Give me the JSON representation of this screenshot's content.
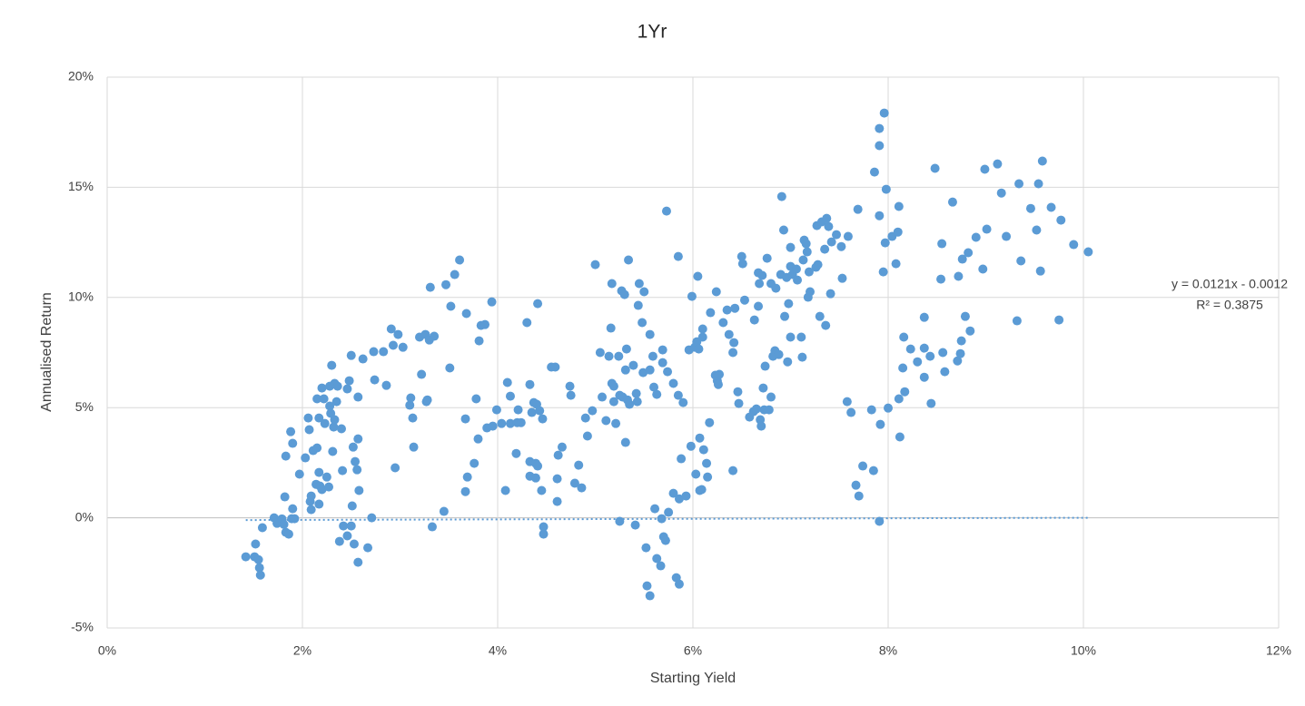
{
  "chart_data": {
    "type": "scatter",
    "title": "1Yr",
    "x_label": "Starting Yield",
    "y_label": "Annualised Return",
    "color": "#5b9bd5",
    "grid": true,
    "xlim": [
      0,
      0.12
    ],
    "ylim": [
      -0.05,
      0.2
    ],
    "xticks": [
      {
        "value": 0,
        "label": "0%"
      },
      {
        "value": 0.02,
        "label": "2%"
      },
      {
        "value": 0.04,
        "label": "4%"
      },
      {
        "value": 0.06,
        "label": "6%"
      },
      {
        "value": 0.08,
        "label": "8%"
      },
      {
        "value": 0.1,
        "label": "10%"
      },
      {
        "value": 0.12,
        "label": "12%"
      }
    ],
    "yticks": [
      {
        "value": -0.05,
        "label": "-5%"
      },
      {
        "value": 0,
        "label": "0%"
      },
      {
        "value": 0.05,
        "label": "5%"
      },
      {
        "value": 0.1,
        "label": "10%"
      },
      {
        "value": 0.15,
        "label": "15%"
      },
      {
        "value": 0.2,
        "label": "20%"
      }
    ],
    "trendline": {
      "equation": "y = 0.0121x - 0.0012",
      "r_squared": "R² = 0.3875",
      "slope": 0.0121,
      "intercept": -0.0012
    },
    "x": [
      0.0142,
      0.0152,
      0.0151,
      0.0155,
      0.0156,
      0.0157,
      0.0159,
      0.0171,
      0.0174,
      0.0179,
      0.0181,
      0.0183,
      0.0186,
      0.0182,
      0.0183,
      0.0188,
      0.019,
      0.019,
      0.0189,
      0.0192,
      0.0197,
      0.0203,
      0.0206,
      0.0207,
      0.0208,
      0.0209,
      0.0209,
      0.0211,
      0.0214,
      0.0215,
      0.0215,
      0.0217,
      0.0217,
      0.0218,
      0.022,
      0.0217,
      0.022,
      0.0222,
      0.0223,
      0.0225,
      0.0227,
      0.0228,
      0.0228,
      0.0229,
      0.023,
      0.0231,
      0.0232,
      0.0233,
      0.0233,
      0.0235,
      0.0236,
      0.0238,
      0.024,
      0.0241,
      0.0242,
      0.0246,
      0.0246,
      0.0248,
      0.025,
      0.025,
      0.0251,
      0.0252,
      0.0253,
      0.0254,
      0.0256,
      0.0257,
      0.0257,
      0.0257,
      0.0258,
      0.0262,
      0.0267,
      0.0271,
      0.0273,
      0.0274,
      0.0283,
      0.0286,
      0.0291,
      0.0293,
      0.0295,
      0.0298,
      0.0303,
      0.031,
      0.0311,
      0.0313,
      0.0314,
      0.032,
      0.0322,
      0.0326,
      0.0327,
      0.0328,
      0.033,
      0.0331,
      0.0333,
      0.0335,
      0.0345,
      0.0347,
      0.0351,
      0.0352,
      0.0356,
      0.0361,
      0.0367,
      0.0367,
      0.0368,
      0.0369,
      0.0376,
      0.0378,
      0.038,
      0.0381,
      0.0383,
      0.0387,
      0.0389,
      0.0394,
      0.0395,
      0.0399,
      0.0404,
      0.0408,
      0.041,
      0.0413,
      0.0413,
      0.0419,
      0.042,
      0.0421,
      0.0424,
      0.043,
      0.0433,
      0.0433,
      0.0433,
      0.0435,
      0.0437,
      0.0439,
      0.0439,
      0.044,
      0.0441,
      0.0441,
      0.0443,
      0.0445,
      0.0446,
      0.0447,
      0.0447,
      0.0455,
      0.0459,
      0.0461,
      0.0461,
      0.0462,
      0.0466,
      0.0474,
      0.0475,
      0.0479,
      0.0483,
      0.0486,
      0.049,
      0.0492,
      0.0497,
      0.05,
      0.0505,
      0.0507,
      0.0511,
      0.0514,
      0.0516,
      0.0517,
      0.0517,
      0.0519,
      0.0519,
      0.0521,
      0.0524,
      0.0525,
      0.0525,
      0.0527,
      0.0528,
      0.053,
      0.0531,
      0.0531,
      0.0532,
      0.0533,
      0.0534,
      0.0535,
      0.0539,
      0.0541,
      0.0542,
      0.0543,
      0.0544,
      0.0545,
      0.0548,
      0.0549,
      0.055,
      0.0552,
      0.0553,
      0.0556,
      0.0556,
      0.0556,
      0.0559,
      0.056,
      0.0561,
      0.0563,
      0.0563,
      0.0567,
      0.0568,
      0.0569,
      0.0569,
      0.057,
      0.0572,
      0.0573,
      0.0574,
      0.0575,
      0.058,
      0.058,
      0.0583,
      0.0585,
      0.0585,
      0.0586,
      0.0586,
      0.0588,
      0.059,
      0.0593,
      0.0596,
      0.0598,
      0.0599,
      0.0602,
      0.0603,
      0.0604,
      0.0605,
      0.0606,
      0.0607,
      0.0607,
      0.0609,
      0.061,
      0.061,
      0.0611,
      0.0614,
      0.0615,
      0.0617,
      0.0618,
      0.0623,
      0.0624,
      0.0625,
      0.0626,
      0.0627,
      0.0631,
      0.0635,
      0.0637,
      0.0641,
      0.0641,
      0.0642,
      0.0643,
      0.0646,
      0.0647,
      0.065,
      0.0651,
      0.0653,
      0.0658,
      0.0662,
      0.0663,
      0.0665,
      0.0667,
      0.0667,
      0.0668,
      0.0669,
      0.067,
      0.0671,
      0.0672,
      0.0673,
      0.0674,
      0.0676,
      0.0678,
      0.068,
      0.068,
      0.0682,
      0.0684,
      0.0685,
      0.0688,
      0.069,
      0.0691,
      0.0693,
      0.0694,
      0.0696,
      0.0697,
      0.0698,
      0.07,
      0.07,
      0.07,
      0.0702,
      0.0706,
      0.0707,
      0.0711,
      0.0712,
      0.0713,
      0.0714,
      0.0716,
      0.0717,
      0.0718,
      0.0719,
      0.072,
      0.0726,
      0.0727,
      0.0728,
      0.073,
      0.0732,
      0.0735,
      0.0736,
      0.0737,
      0.0739,
      0.0741,
      0.0742,
      0.0747,
      0.0752,
      0.0753,
      0.0758,
      0.0759,
      0.0762,
      0.0767,
      0.0769,
      0.077,
      0.0774,
      0.0786,
      0.0791,
      0.0791,
      0.0796,
      0.0791,
      0.0783,
      0.0785,
      0.0791,
      0.0792,
      0.0795,
      0.0797,
      0.0798,
      0.08,
      0.0804,
      0.0808,
      0.081,
      0.0811,
      0.0811,
      0.0812,
      0.0815,
      0.0816,
      0.0817,
      0.0848,
      0.0823,
      0.083,
      0.0837,
      0.0837,
      0.0837,
      0.0866,
      0.0843,
      0.0844,
      0.0854,
      0.0855,
      0.0856,
      0.0858,
      0.0871,
      0.0872,
      0.0874,
      0.0875,
      0.0876,
      0.0879,
      0.0882,
      0.0884,
      0.089,
      0.0897,
      0.0899,
      0.0901,
      0.0912,
      0.0916,
      0.0921,
      0.0934,
      0.0936,
      0.0946,
      0.0952,
      0.0954,
      0.0958,
      0.0956,
      0.0967,
      0.0975,
      0.0977,
      0.099,
      0.1005,
      0.0932
    ],
    "values": [
      -0.0177,
      -0.0119,
      -0.0177,
      -0.019,
      -0.0227,
      -0.026,
      -0.0045,
      0,
      -0.0025,
      -0.0005,
      -0.003,
      -0.0066,
      -0.0074,
      0.0095,
      0.028,
      0.0391,
      0.0338,
      0.0041,
      -0.0004,
      -0.0004,
      0.0198,
      0.0272,
      0.0453,
      0.04,
      0.0074,
      0.0099,
      0.0037,
      0.0305,
      0.0152,
      0.0317,
      0.054,
      0.0206,
      0.0453,
      0.0144,
      0.0128,
      0.0062,
      0.0589,
      0.054,
      0.0428,
      0.0185,
      0.014,
      0.0597,
      0.0507,
      0.0474,
      0.0692,
      0.0301,
      0.0412,
      0.061,
      0.0445,
      0.0527,
      0.0597,
      -0.0107,
      0.0404,
      0.0214,
      -0.0037,
      -0.0082,
      0.0585,
      0.0622,
      0.0737,
      -0.0037,
      0.0054,
      0.0321,
      -0.0119,
      0.0255,
      0.0218,
      -0.0202,
      0.0358,
      0.0548,
      0.0124,
      0.0721,
      -0.0136,
      0,
      0.0754,
      0.0626,
      0.0754,
      0.0601,
      0.0857,
      0.0783,
      0.0227,
      0.0832,
      0.0774,
      0.0511,
      0.0544,
      0.0453,
      0.0321,
      0.082,
      0.0651,
      0.0832,
      0.0527,
      0.0535,
      0.0807,
      0.1046,
      -0.0041,
      0.0824,
      0.0029,
      0.1058,
      0.068,
      0.096,
      0.1104,
      0.117,
      0.0119,
      0.0449,
      0.0927,
      0.0185,
      0.0247,
      0.054,
      0.0358,
      0.0803,
      0.0873,
      0.0877,
      0.0408,
      0.098,
      0.0416,
      0.049,
      0.0428,
      0.0124,
      0.0614,
      0.0552,
      0.0428,
      0.0292,
      0.0432,
      0.049,
      0.0432,
      0.0886,
      0.0605,
      0.0255,
      0.0189,
      0.0478,
      0.0523,
      0.0247,
      0.0181,
      0.0515,
      0.0972,
      0.0235,
      0.0486,
      0.0124,
      0.0449,
      -0.0041,
      -0.0074,
      0.0684,
      0.0684,
      0.0177,
      0.0074,
      0.0284,
      0.0321,
      0.0597,
      0.0556,
      0.0157,
      0.0239,
      0.0136,
      0.0453,
      0.0371,
      0.0486,
      0.1149,
      0.075,
      0.0548,
      0.0441,
      0.0733,
      0.0861,
      0.061,
      0.1063,
      0.0597,
      0.0527,
      0.0428,
      0.0733,
      0.0556,
      -0.0016,
      0.103,
      0.0548,
      0.1013,
      0.0671,
      0.0342,
      0.0766,
      0.0535,
      0.117,
      0.0515,
      0.0692,
      -0.0033,
      0.0564,
      0.0527,
      0.0964,
      0.1063,
      0.0886,
      0.0659,
      0.1026,
      -0.0136,
      -0.0309,
      0.0832,
      0.0671,
      -0.0354,
      0.0733,
      0.0593,
      0.0041,
      0.056,
      -0.0185,
      -0.0218,
      -0.0004,
      0.0704,
      0.0762,
      -0.0086,
      -0.0103,
      0.1392,
      0.0663,
      0.0025,
      0.0111,
      0.061,
      -0.0272,
      0.1186,
      0.0556,
      -0.0301,
      0.0086,
      0.0268,
      0.0523,
      0.0099,
      0.0762,
      0.0325,
      0.1005,
      0.0774,
      0.0198,
      0.0799,
      0.1096,
      0.0766,
      0.0362,
      0.0124,
      0.0128,
      0.082,
      0.0857,
      0.0309,
      0.0247,
      0.0185,
      0.0432,
      0.0931,
      0.0647,
      0.1026,
      0.0622,
      0.0605,
      0.0651,
      0.0886,
      0.0943,
      0.0832,
      0.0214,
      0.075,
      0.0795,
      0.0951,
      0.0572,
      0.0519,
      0.1186,
      0.1153,
      0.0988,
      0.0457,
      0.0482,
      0.0898,
      0.0494,
      0.1112,
      0.096,
      0.1063,
      0.0445,
      0.0416,
      0.11,
      0.0589,
      0.049,
      0.0688,
      0.1178,
      0.049,
      0.1063,
      0.0548,
      0.0733,
      0.0758,
      0.1042,
      0.0741,
      0.1104,
      0.1458,
      0.1306,
      0.0914,
      0.1091,
      0.0708,
      0.0972,
      0.1227,
      0.082,
      0.1141,
      0.1104,
      0.1129,
      0.1079,
      0.082,
      0.0729,
      0.117,
      0.126,
      0.1244,
      0.1207,
      0.1001,
      0.1116,
      0.1026,
      0.1137,
      0.1326,
      0.1149,
      0.0914,
      0.1343,
      0.1219,
      0.0873,
      0.1359,
      0.1322,
      0.1017,
      0.1252,
      0.1285,
      0.1231,
      0.1087,
      0.0527,
      0.1277,
      0.0478,
      0.0148,
      0.14,
      0.0099,
      0.0235,
      0.1569,
      0.1689,
      0.1767,
      0.1837,
      0.1371,
      0.049,
      0.0214,
      -0.0016,
      0.0424,
      0.1116,
      0.1248,
      0.1491,
      0.0498,
      0.1277,
      0.1153,
      0.1297,
      0.1413,
      0.054,
      0.0367,
      0.068,
      0.082,
      0.0572,
      0.1586,
      0.0766,
      0.0708,
      0.077,
      0.0638,
      0.091,
      0.1433,
      0.0733,
      0.0519,
      0.1083,
      0.1244,
      0.075,
      0.0663,
      0.0712,
      0.1096,
      0.0745,
      0.0803,
      0.1174,
      0.0914,
      0.1203,
      0.0848,
      0.1273,
      0.1129,
      0.1582,
      0.131,
      0.1606,
      0.1474,
      0.1277,
      0.1516,
      0.1166,
      0.1404,
      0.1306,
      0.1516,
      0.1619,
      0.112,
      0.1409,
      0.0898,
      0.1351,
      0.124,
      0.1207,
      0.0894
    ]
  }
}
